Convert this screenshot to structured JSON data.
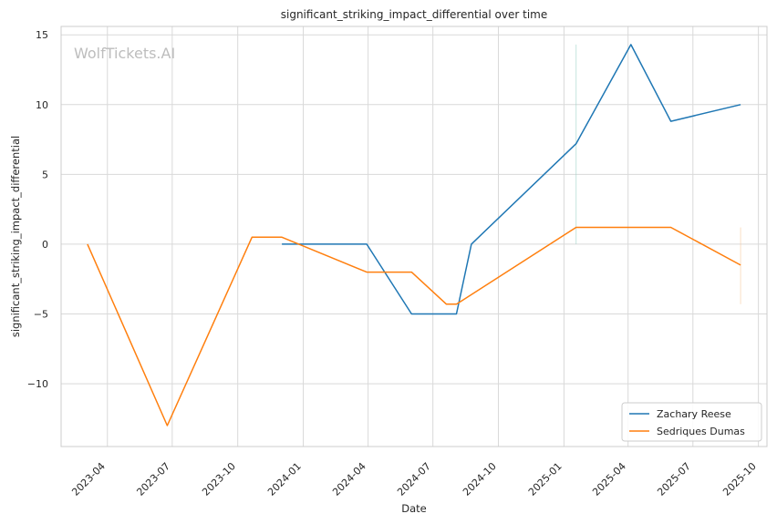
{
  "chart_data": {
    "type": "line",
    "title": "significant_striking_impact_differential over time",
    "xlabel": "Date",
    "ylabel": "significant_striking_impact_differential",
    "watermark": "WolfTickets.AI",
    "x_axis": "date",
    "xlim": [
      "2023-01-26",
      "2025-10-13"
    ],
    "ylim": [
      -14.5,
      15.6
    ],
    "x_ticks": [
      "2023-04-01",
      "2023-07-01",
      "2023-10-01",
      "2024-01-01",
      "2024-04-01",
      "2024-07-01",
      "2024-10-01",
      "2025-01-01",
      "2025-04-01",
      "2025-07-01",
      "2025-10-01"
    ],
    "x_tick_labels": [
      "2023-04",
      "2023-07",
      "2023-10",
      "2024-01",
      "2024-04",
      "2024-07",
      "2024-10",
      "2025-01",
      "2025-04",
      "2025-07",
      "2025-10"
    ],
    "y_ticks": [
      -10,
      -5,
      0,
      5,
      10,
      15
    ],
    "y_tick_labels": [
      "−10",
      "−5",
      "0",
      "5",
      "10",
      "15"
    ],
    "grid": true,
    "legend": "lower-right",
    "series": [
      {
        "name": "Zachary Reese",
        "color": "#1f77b4",
        "points": [
          {
            "x": "2023-12-02",
            "y": 0
          },
          {
            "x": "2024-03-30",
            "y": 0
          },
          {
            "x": "2024-06-01",
            "y": -5
          },
          {
            "x": "2024-08-03",
            "y": -5
          },
          {
            "x": "2024-08-24",
            "y": 0
          },
          {
            "x": "2025-01-18",
            "y": 7.2
          },
          {
            "x": "2025-04-05",
            "y": 14.3
          },
          {
            "x": "2025-05-31",
            "y": 8.8
          },
          {
            "x": "2025-09-06",
            "y": 10
          }
        ]
      },
      {
        "name": "Sedriques Dumas",
        "color": "#ff7f0e",
        "points": [
          {
            "x": "2023-03-04",
            "y": 0
          },
          {
            "x": "2023-06-24",
            "y": -13
          },
          {
            "x": "2023-10-21",
            "y": 0.5
          },
          {
            "x": "2023-12-02",
            "y": 0.5
          },
          {
            "x": "2024-03-30",
            "y": -2
          },
          {
            "x": "2024-06-01",
            "y": -2
          },
          {
            "x": "2024-07-20",
            "y": -4.3
          },
          {
            "x": "2024-08-03",
            "y": -4.3
          },
          {
            "x": "2025-01-18",
            "y": 1.2
          },
          {
            "x": "2025-05-31",
            "y": 1.2
          },
          {
            "x": "2025-09-06",
            "y": -1.5
          }
        ]
      }
    ]
  }
}
